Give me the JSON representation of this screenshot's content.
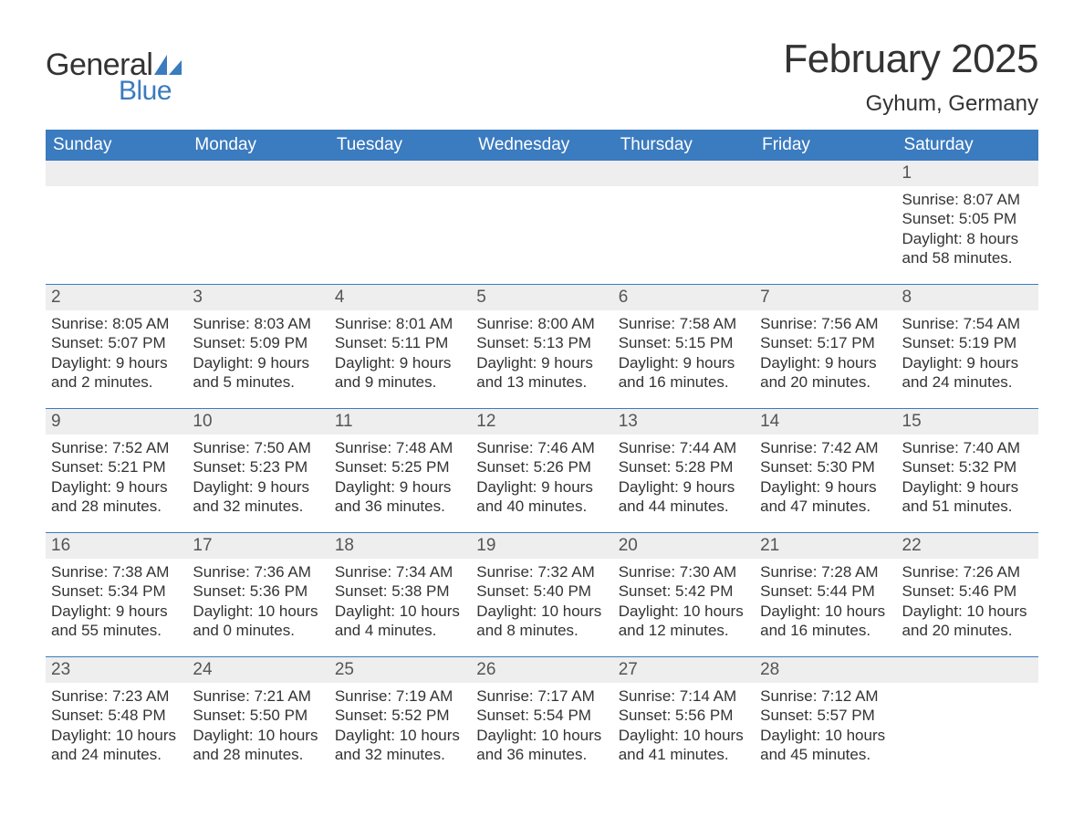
{
  "logo": {
    "word1": "General",
    "word2": "Blue",
    "sail_color": "#3b7bbf",
    "text_color": "#333333"
  },
  "title": "February 2025",
  "location": "Gyhum, Germany",
  "colors": {
    "header_bg": "#3b7bbf",
    "header_text": "#ffffff",
    "daynum_bg": "#eeeeee",
    "text": "#333333",
    "separator": "#3b7bbf"
  },
  "day_headers": [
    "Sunday",
    "Monday",
    "Tuesday",
    "Wednesday",
    "Thursday",
    "Friday",
    "Saturday"
  ],
  "weeks": [
    [
      null,
      null,
      null,
      null,
      null,
      null,
      {
        "n": "1",
        "sunrise": "Sunrise: 8:07 AM",
        "sunset": "Sunset: 5:05 PM",
        "daylight": "Daylight: 8 hours and 58 minutes."
      }
    ],
    [
      {
        "n": "2",
        "sunrise": "Sunrise: 8:05 AM",
        "sunset": "Sunset: 5:07 PM",
        "daylight": "Daylight: 9 hours and 2 minutes."
      },
      {
        "n": "3",
        "sunrise": "Sunrise: 8:03 AM",
        "sunset": "Sunset: 5:09 PM",
        "daylight": "Daylight: 9 hours and 5 minutes."
      },
      {
        "n": "4",
        "sunrise": "Sunrise: 8:01 AM",
        "sunset": "Sunset: 5:11 PM",
        "daylight": "Daylight: 9 hours and 9 minutes."
      },
      {
        "n": "5",
        "sunrise": "Sunrise: 8:00 AM",
        "sunset": "Sunset: 5:13 PM",
        "daylight": "Daylight: 9 hours and 13 minutes."
      },
      {
        "n": "6",
        "sunrise": "Sunrise: 7:58 AM",
        "sunset": "Sunset: 5:15 PM",
        "daylight": "Daylight: 9 hours and 16 minutes."
      },
      {
        "n": "7",
        "sunrise": "Sunrise: 7:56 AM",
        "sunset": "Sunset: 5:17 PM",
        "daylight": "Daylight: 9 hours and 20 minutes."
      },
      {
        "n": "8",
        "sunrise": "Sunrise: 7:54 AM",
        "sunset": "Sunset: 5:19 PM",
        "daylight": "Daylight: 9 hours and 24 minutes."
      }
    ],
    [
      {
        "n": "9",
        "sunrise": "Sunrise: 7:52 AM",
        "sunset": "Sunset: 5:21 PM",
        "daylight": "Daylight: 9 hours and 28 minutes."
      },
      {
        "n": "10",
        "sunrise": "Sunrise: 7:50 AM",
        "sunset": "Sunset: 5:23 PM",
        "daylight": "Daylight: 9 hours and 32 minutes."
      },
      {
        "n": "11",
        "sunrise": "Sunrise: 7:48 AM",
        "sunset": "Sunset: 5:25 PM",
        "daylight": "Daylight: 9 hours and 36 minutes."
      },
      {
        "n": "12",
        "sunrise": "Sunrise: 7:46 AM",
        "sunset": "Sunset: 5:26 PM",
        "daylight": "Daylight: 9 hours and 40 minutes."
      },
      {
        "n": "13",
        "sunrise": "Sunrise: 7:44 AM",
        "sunset": "Sunset: 5:28 PM",
        "daylight": "Daylight: 9 hours and 44 minutes."
      },
      {
        "n": "14",
        "sunrise": "Sunrise: 7:42 AM",
        "sunset": "Sunset: 5:30 PM",
        "daylight": "Daylight: 9 hours and 47 minutes."
      },
      {
        "n": "15",
        "sunrise": "Sunrise: 7:40 AM",
        "sunset": "Sunset: 5:32 PM",
        "daylight": "Daylight: 9 hours and 51 minutes."
      }
    ],
    [
      {
        "n": "16",
        "sunrise": "Sunrise: 7:38 AM",
        "sunset": "Sunset: 5:34 PM",
        "daylight": "Daylight: 9 hours and 55 minutes."
      },
      {
        "n": "17",
        "sunrise": "Sunrise: 7:36 AM",
        "sunset": "Sunset: 5:36 PM",
        "daylight": "Daylight: 10 hours and 0 minutes."
      },
      {
        "n": "18",
        "sunrise": "Sunrise: 7:34 AM",
        "sunset": "Sunset: 5:38 PM",
        "daylight": "Daylight: 10 hours and 4 minutes."
      },
      {
        "n": "19",
        "sunrise": "Sunrise: 7:32 AM",
        "sunset": "Sunset: 5:40 PM",
        "daylight": "Daylight: 10 hours and 8 minutes."
      },
      {
        "n": "20",
        "sunrise": "Sunrise: 7:30 AM",
        "sunset": "Sunset: 5:42 PM",
        "daylight": "Daylight: 10 hours and 12 minutes."
      },
      {
        "n": "21",
        "sunrise": "Sunrise: 7:28 AM",
        "sunset": "Sunset: 5:44 PM",
        "daylight": "Daylight: 10 hours and 16 minutes."
      },
      {
        "n": "22",
        "sunrise": "Sunrise: 7:26 AM",
        "sunset": "Sunset: 5:46 PM",
        "daylight": "Daylight: 10 hours and 20 minutes."
      }
    ],
    [
      {
        "n": "23",
        "sunrise": "Sunrise: 7:23 AM",
        "sunset": "Sunset: 5:48 PM",
        "daylight": "Daylight: 10 hours and 24 minutes."
      },
      {
        "n": "24",
        "sunrise": "Sunrise: 7:21 AM",
        "sunset": "Sunset: 5:50 PM",
        "daylight": "Daylight: 10 hours and 28 minutes."
      },
      {
        "n": "25",
        "sunrise": "Sunrise: 7:19 AM",
        "sunset": "Sunset: 5:52 PM",
        "daylight": "Daylight: 10 hours and 32 minutes."
      },
      {
        "n": "26",
        "sunrise": "Sunrise: 7:17 AM",
        "sunset": "Sunset: 5:54 PM",
        "daylight": "Daylight: 10 hours and 36 minutes."
      },
      {
        "n": "27",
        "sunrise": "Sunrise: 7:14 AM",
        "sunset": "Sunset: 5:56 PM",
        "daylight": "Daylight: 10 hours and 41 minutes."
      },
      {
        "n": "28",
        "sunrise": "Sunrise: 7:12 AM",
        "sunset": "Sunset: 5:57 PM",
        "daylight": "Daylight: 10 hours and 45 minutes."
      },
      null
    ]
  ]
}
